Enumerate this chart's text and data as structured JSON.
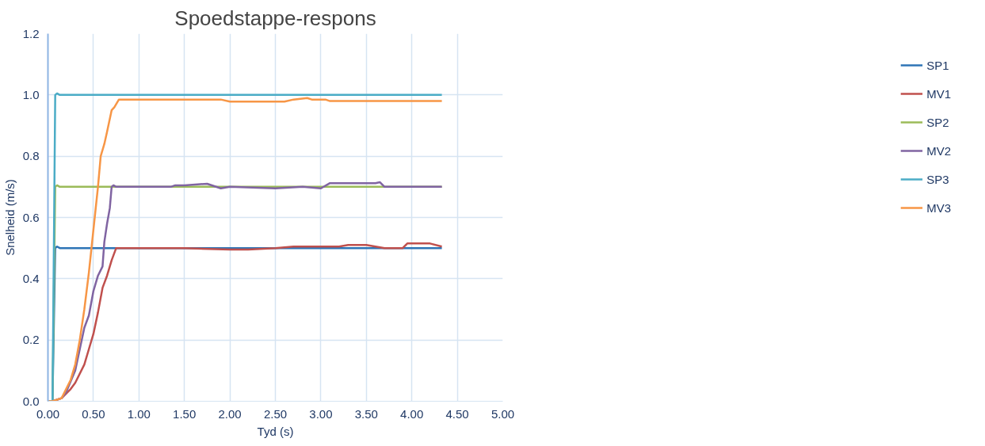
{
  "chart_data": {
    "type": "line",
    "title": "Spoedstappe-respons",
    "xlabel": "Tyd (s)",
    "ylabel": "Snelheid (m/s)",
    "xlim": [
      0,
      5
    ],
    "ylim": [
      0,
      1.2
    ],
    "xticks": [
      {
        "value": 0,
        "label": "0.00"
      },
      {
        "value": 0.5,
        "label": "0.50"
      },
      {
        "value": 1,
        "label": "1.00"
      },
      {
        "value": 1.5,
        "label": "1.50"
      },
      {
        "value": 2,
        "label": "2.00"
      },
      {
        "value": 2.5,
        "label": "2.50"
      },
      {
        "value": 3,
        "label": "3.00"
      },
      {
        "value": 3.5,
        "label": "3.50"
      },
      {
        "value": 4,
        "label": "4.00"
      },
      {
        "value": 4.5,
        "label": "4.50"
      },
      {
        "value": 5,
        "label": "5.00"
      }
    ],
    "yticks": [
      {
        "value": 0,
        "label": "0.0"
      },
      {
        "value": 0.2,
        "label": "0.2"
      },
      {
        "value": 0.4,
        "label": "0.4"
      },
      {
        "value": 0.6,
        "label": "0.6"
      },
      {
        "value": 0.8,
        "label": "0.8"
      },
      {
        "value": 1,
        "label": "1.0"
      },
      {
        "value": 1.2,
        "label": "1.2"
      }
    ],
    "grid": true,
    "legend": "right",
    "marker": "none",
    "line_style": "solid",
    "series": [
      {
        "name": "SP1",
        "color": "#2e75b6",
        "x": [
          0,
          0.05,
          0.08,
          0.1,
          0.13,
          4.33
        ],
        "values": [
          0,
          0,
          0.5,
          0.505,
          0.5,
          0.5
        ]
      },
      {
        "name": "MV1",
        "color": "#c0504d",
        "x": [
          0,
          0.05,
          0.15,
          0.25,
          0.3,
          0.4,
          0.45,
          0.5,
          0.55,
          0.6,
          0.65,
          0.7,
          0.75,
          0.78,
          1.5,
          2.0,
          2.2,
          2.5,
          2.7,
          3.0,
          3.2,
          3.3,
          3.5,
          3.6,
          3.7,
          3.9,
          3.95,
          4.2,
          4.33
        ],
        "values": [
          0,
          0,
          0.01,
          0.04,
          0.06,
          0.12,
          0.17,
          0.22,
          0.29,
          0.37,
          0.41,
          0.46,
          0.5,
          0.5,
          0.5,
          0.495,
          0.495,
          0.5,
          0.505,
          0.505,
          0.505,
          0.51,
          0.51,
          0.505,
          0.5,
          0.5,
          0.515,
          0.515,
          0.505
        ]
      },
      {
        "name": "SP2",
        "color": "#9bbb59",
        "x": [
          0,
          0.05,
          0.08,
          0.1,
          0.13,
          4.33
        ],
        "values": [
          0,
          0,
          0.7,
          0.705,
          0.7,
          0.7
        ]
      },
      {
        "name": "MV2",
        "color": "#8064a2",
        "x": [
          0,
          0.05,
          0.15,
          0.2,
          0.3,
          0.35,
          0.4,
          0.45,
          0.5,
          0.55,
          0.6,
          0.62,
          0.65,
          0.68,
          0.7,
          0.72,
          0.75,
          1.35,
          1.4,
          1.5,
          1.75,
          1.9,
          2.0,
          2.5,
          2.8,
          3.0,
          3.1,
          3.6,
          3.65,
          3.7,
          4.33
        ],
        "values": [
          0,
          0,
          0.01,
          0.03,
          0.1,
          0.17,
          0.24,
          0.28,
          0.36,
          0.41,
          0.44,
          0.52,
          0.58,
          0.63,
          0.7,
          0.705,
          0.7,
          0.7,
          0.705,
          0.705,
          0.71,
          0.695,
          0.7,
          0.695,
          0.7,
          0.695,
          0.712,
          0.712,
          0.715,
          0.7,
          0.7
        ]
      },
      {
        "name": "SP3",
        "color": "#4bacc6",
        "x": [
          0,
          0.05,
          0.08,
          0.1,
          0.13,
          4.33
        ],
        "values": [
          0,
          0,
          1.0,
          1.005,
          1.0,
          1.0
        ]
      },
      {
        "name": "MV3",
        "color": "#f79646",
        "x": [
          0,
          0.05,
          0.15,
          0.25,
          0.3,
          0.35,
          0.4,
          0.45,
          0.5,
          0.55,
          0.58,
          0.62,
          0.65,
          0.7,
          0.73,
          0.78,
          1.8,
          1.9,
          2.0,
          2.6,
          2.7,
          2.85,
          2.9,
          3.05,
          3.1,
          4.33
        ],
        "values": [
          0,
          0,
          0.01,
          0.07,
          0.12,
          0.2,
          0.3,
          0.42,
          0.56,
          0.7,
          0.8,
          0.84,
          0.88,
          0.95,
          0.96,
          0.985,
          0.985,
          0.985,
          0.978,
          0.978,
          0.985,
          0.99,
          0.985,
          0.985,
          0.98,
          0.98
        ]
      }
    ]
  }
}
